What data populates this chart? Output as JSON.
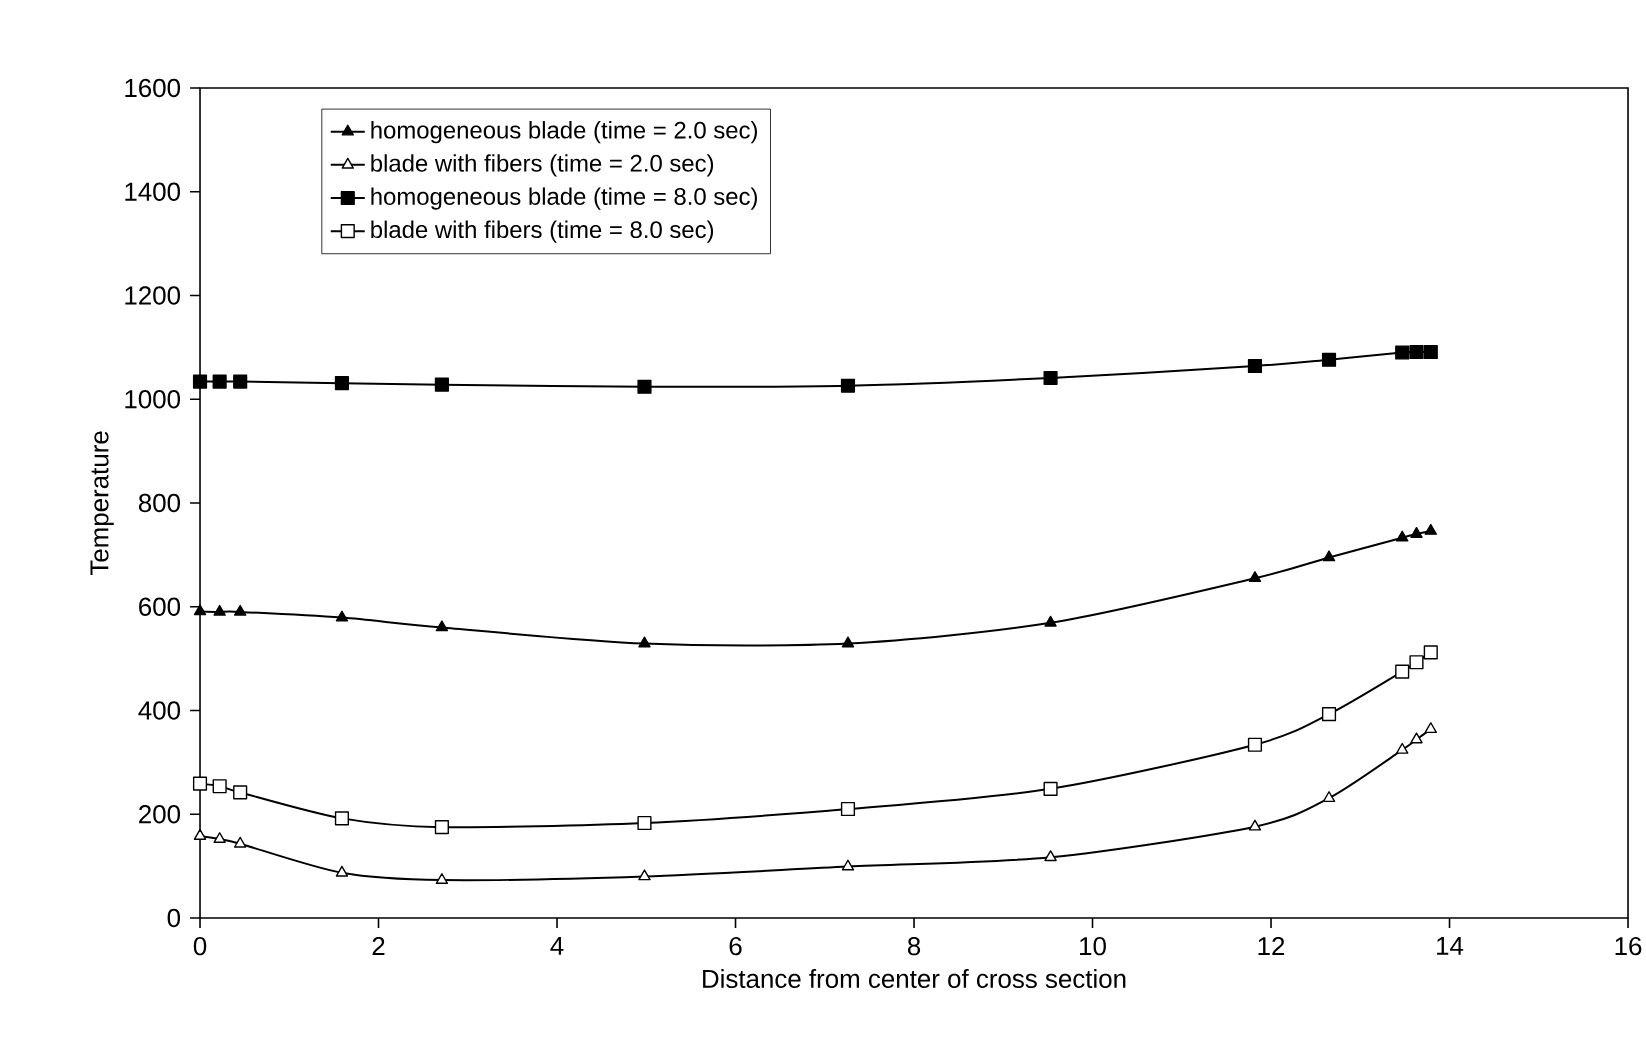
{
  "chart_data": {
    "type": "line",
    "xlabel": "Distance from center of cross section",
    "ylabel": "Temperature",
    "x": [
      0,
      0.22,
      0.45,
      1.59,
      2.71,
      4.98,
      7.26,
      9.53,
      11.82,
      12.65,
      13.47,
      13.63,
      13.79
    ],
    "series": [
      {
        "name": "homogeneous blade (time = 2.0 sec)",
        "color": "#000000",
        "marker": "triangle",
        "values": [
          591,
          590,
          590,
          579,
          560,
          529,
          529,
          569,
          655,
          695,
          733,
          740,
          746
        ]
      },
      {
        "name": "blade with fibers (time = 2.0 sec)",
        "color": "#000000",
        "marker": "triangle",
        "values": [
          158,
          152,
          143,
          87,
          73,
          80,
          99,
          117,
          176,
          231,
          324,
          344,
          364
        ]
      },
      {
        "name": "homogeneous blade (time = 8.0 sec)",
        "color": "#000000",
        "marker": "square",
        "values": [
          1034,
          1034,
          1034,
          1031,
          1028,
          1024,
          1026,
          1041,
          1064,
          1076,
          1090,
          1091,
          1091
        ]
      },
      {
        "name": "blade with fibers (time = 8.0 sec)",
        "color": "#000000",
        "marker": "square",
        "values": [
          259,
          254,
          242,
          192,
          175,
          183,
          210,
          249,
          334,
          393,
          475,
          493,
          512
        ]
      }
    ],
    "xlim": [
      0,
      16
    ],
    "xticks": [
      0,
      2,
      4,
      6,
      8,
      10,
      12,
      14,
      16
    ],
    "ylim": [
      0,
      1600
    ],
    "yticks": [
      0,
      200,
      400,
      600,
      800,
      1000,
      1200,
      1400,
      1600
    ],
    "grid": false,
    "legend": "top left",
    "line_style": "solid"
  }
}
